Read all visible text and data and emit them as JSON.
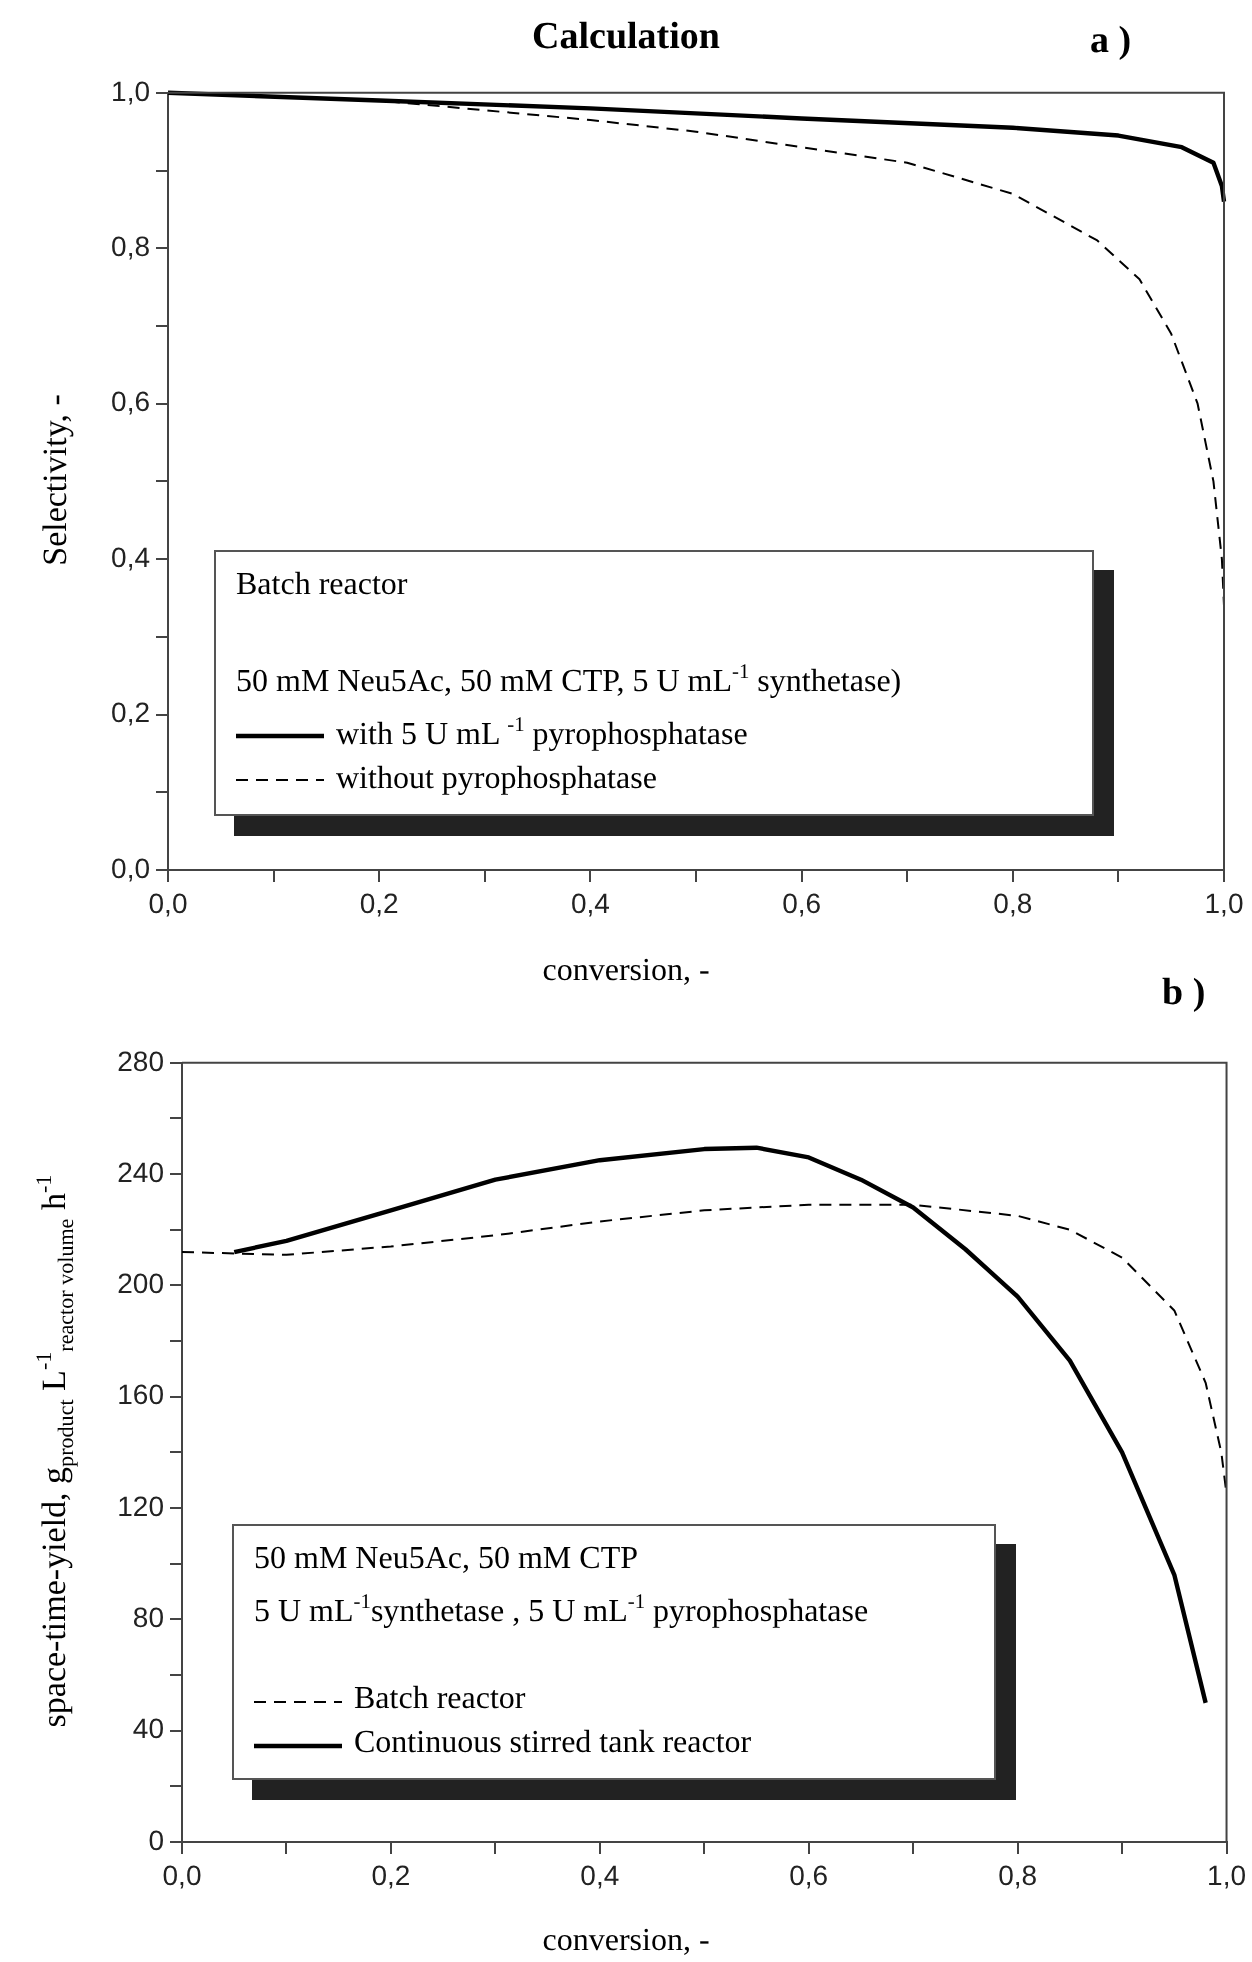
{
  "chart_data": [
    {
      "type": "line",
      "title": "Calculation",
      "xlabel": "conversion, -",
      "ylabel": "Selectivity, -",
      "legend_title": "Batch reactor",
      "legend": "bottom left",
      "annotations": [
        "a )",
        "50 mM Neu5Ac, 50 mM CTP, 5 U mL$^{-1}$ synthetase)"
      ],
      "xlim": [
        0,
        1
      ],
      "ylim": [
        0,
        1
      ],
      "xticks": [
        {
          "value": 0,
          "label": "0,0"
        },
        {
          "value": 0.1,
          "label": null
        },
        {
          "value": 0.2,
          "label": "0,2"
        },
        {
          "value": 0.3,
          "label": null
        },
        {
          "value": 0.4,
          "label": "0,4"
        },
        {
          "value": 0.5,
          "label": null
        },
        {
          "value": 0.6,
          "label": "0,6"
        },
        {
          "value": 0.7,
          "label": null
        },
        {
          "value": 0.8,
          "label": "0,8"
        },
        {
          "value": 0.9,
          "label": null
        },
        {
          "value": 1,
          "label": "1,0"
        }
      ],
      "yticks": [
        {
          "value": 0,
          "label": "0,0"
        },
        {
          "value": 0.1,
          "label": null
        },
        {
          "value": 0.2,
          "label": "0,2"
        },
        {
          "value": 0.3,
          "label": null
        },
        {
          "value": 0.4,
          "label": "0,4"
        },
        {
          "value": 0.5,
          "label": null
        },
        {
          "value": 0.6,
          "label": "0,6"
        },
        {
          "value": 0.7,
          "label": null
        },
        {
          "value": 0.8,
          "label": "0,8"
        },
        {
          "value": 0.9,
          "label": null
        },
        {
          "value": 1,
          "label": "1,0"
        }
      ],
      "marker": "none",
      "series": [
        {
          "name": "with 5 U mL $^{-1}$ pyrophosphatase",
          "color": "#000000",
          "line_style": "solid",
          "x": [
            0,
            0.2,
            0.4,
            0.6,
            0.8,
            0.9,
            0.96,
            0.99,
            0.998,
            1
          ],
          "values": [
            1,
            0.99,
            0.98,
            0.967,
            0.955,
            0.945,
            0.93,
            0.91,
            0.88,
            0.86
          ]
        },
        {
          "name": "without pyrophosphatase",
          "color": "#000000",
          "line_style": "dashed",
          "x": [
            0,
            0.2,
            0.4,
            0.5,
            0.6,
            0.7,
            0.8,
            0.88,
            0.92,
            0.95,
            0.975,
            0.99,
            0.998,
            1
          ],
          "values": [
            1,
            0.99,
            0.965,
            0.95,
            0.93,
            0.91,
            0.87,
            0.81,
            0.76,
            0.69,
            0.6,
            0.5,
            0.4,
            0.34
          ]
        }
      ]
    },
    {
      "type": "line",
      "xlabel": "conversion, -",
      "ylabel": "space-time-yield, g$_{product}$ L$^{-1}$$_{reactor volume}$ h$^{-1}$",
      "legend_title": "50 mM Neu5Ac, 50 mM CTP",
      "legend": "bottom left",
      "annotations": [
        "b )",
        " 5 U mL$^{-1}$synthetase , 5 U mL$^{-1}$ pyrophosphatase"
      ],
      "xlim": [
        0,
        1
      ],
      "ylim": [
        0,
        280
      ],
      "xticks": [
        {
          "value": 0,
          "label": "0,0"
        },
        {
          "value": 0.1,
          "label": null
        },
        {
          "value": 0.2,
          "label": "0,2"
        },
        {
          "value": 0.3,
          "label": null
        },
        {
          "value": 0.4,
          "label": "0,4"
        },
        {
          "value": 0.5,
          "label": null
        },
        {
          "value": 0.6,
          "label": "0,6"
        },
        {
          "value": 0.7,
          "label": null
        },
        {
          "value": 0.8,
          "label": "0,8"
        },
        {
          "value": 0.9,
          "label": null
        },
        {
          "value": 1,
          "label": "1,0"
        }
      ],
      "yticks": [
        0,
        {
          "value": 20,
          "label": null
        },
        40,
        {
          "value": 60,
          "label": null
        },
        80,
        {
          "value": 100,
          "label": null
        },
        120,
        {
          "value": 140,
          "label": null
        },
        160,
        {
          "value": 180,
          "label": null
        },
        200,
        {
          "value": 220,
          "label": null
        },
        240,
        {
          "value": 260,
          "label": null
        },
        280
      ],
      "marker": "none",
      "series": [
        {
          "name": "Batch reactor",
          "color": "#000000",
          "line_style": "dashed",
          "x": [
            0,
            0.1,
            0.2,
            0.3,
            0.4,
            0.5,
            0.6,
            0.7,
            0.8,
            0.85,
            0.9,
            0.95,
            0.98,
            0.995,
            1
          ],
          "values": [
            212,
            211,
            214,
            218,
            223,
            227,
            229,
            229,
            225,
            220,
            210,
            191,
            165,
            140,
            125
          ]
        },
        {
          "name": "Continuous stirred tank reactor",
          "color": "#000000",
          "line_style": "solid",
          "x": [
            0.05,
            0.1,
            0.2,
            0.3,
            0.4,
            0.5,
            0.55,
            0.6,
            0.65,
            0.7,
            0.75,
            0.8,
            0.85,
            0.9,
            0.95,
            0.98
          ],
          "values": [
            212,
            216,
            227,
            238,
            245,
            249,
            249.5,
            246,
            238,
            228,
            213,
            196,
            173,
            140,
            96,
            50
          ]
        }
      ]
    }
  ]
}
